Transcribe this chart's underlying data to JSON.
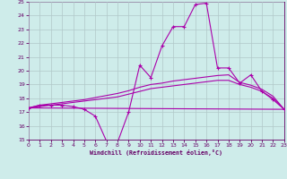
{
  "xlabel": "Windchill (Refroidissement éolien,°C)",
  "xlim": [
    0,
    23
  ],
  "ylim": [
    15,
    25
  ],
  "yticks": [
    15,
    16,
    17,
    18,
    19,
    20,
    21,
    22,
    23,
    24,
    25
  ],
  "xticks": [
    0,
    1,
    2,
    3,
    4,
    5,
    6,
    7,
    8,
    9,
    10,
    11,
    12,
    13,
    14,
    15,
    16,
    17,
    18,
    19,
    20,
    21,
    22,
    23
  ],
  "bg_color": "#ceecea",
  "grid_color": "#b0c8c8",
  "line_color": "#aa00aa",
  "line1_x": [
    0,
    1,
    2,
    3,
    4,
    5,
    6,
    7,
    8,
    9,
    10,
    11,
    12,
    13,
    14,
    15,
    16,
    17,
    18,
    19,
    20,
    21,
    22,
    23
  ],
  "line1_y": [
    17.3,
    17.5,
    17.5,
    17.5,
    17.4,
    17.2,
    16.7,
    14.9,
    14.8,
    17.0,
    20.4,
    19.5,
    21.8,
    23.2,
    23.2,
    24.8,
    24.9,
    20.2,
    20.2,
    19.1,
    19.7,
    18.5,
    17.9,
    17.2
  ],
  "line2_x": [
    0,
    23
  ],
  "line2_y": [
    17.3,
    17.2
  ],
  "line3_x": [
    0,
    1,
    2,
    3,
    4,
    5,
    6,
    7,
    8,
    9,
    10,
    11,
    12,
    13,
    14,
    15,
    16,
    17,
    18,
    19,
    20,
    21,
    22,
    23
  ],
  "line3_y": [
    17.3,
    17.4,
    17.5,
    17.6,
    17.7,
    17.8,
    17.9,
    18.0,
    18.1,
    18.3,
    18.5,
    18.7,
    18.8,
    18.9,
    19.0,
    19.1,
    19.2,
    19.3,
    19.3,
    19.0,
    18.8,
    18.5,
    18.0,
    17.2
  ],
  "line4_x": [
    0,
    1,
    2,
    3,
    4,
    5,
    6,
    7,
    8,
    9,
    10,
    11,
    12,
    13,
    14,
    15,
    16,
    17,
    18,
    19,
    20,
    21,
    22,
    23
  ],
  "line4_y": [
    17.3,
    17.5,
    17.6,
    17.7,
    17.8,
    17.9,
    18.05,
    18.2,
    18.35,
    18.55,
    18.8,
    19.0,
    19.1,
    19.25,
    19.35,
    19.45,
    19.55,
    19.65,
    19.7,
    19.15,
    18.95,
    18.65,
    18.15,
    17.2
  ]
}
